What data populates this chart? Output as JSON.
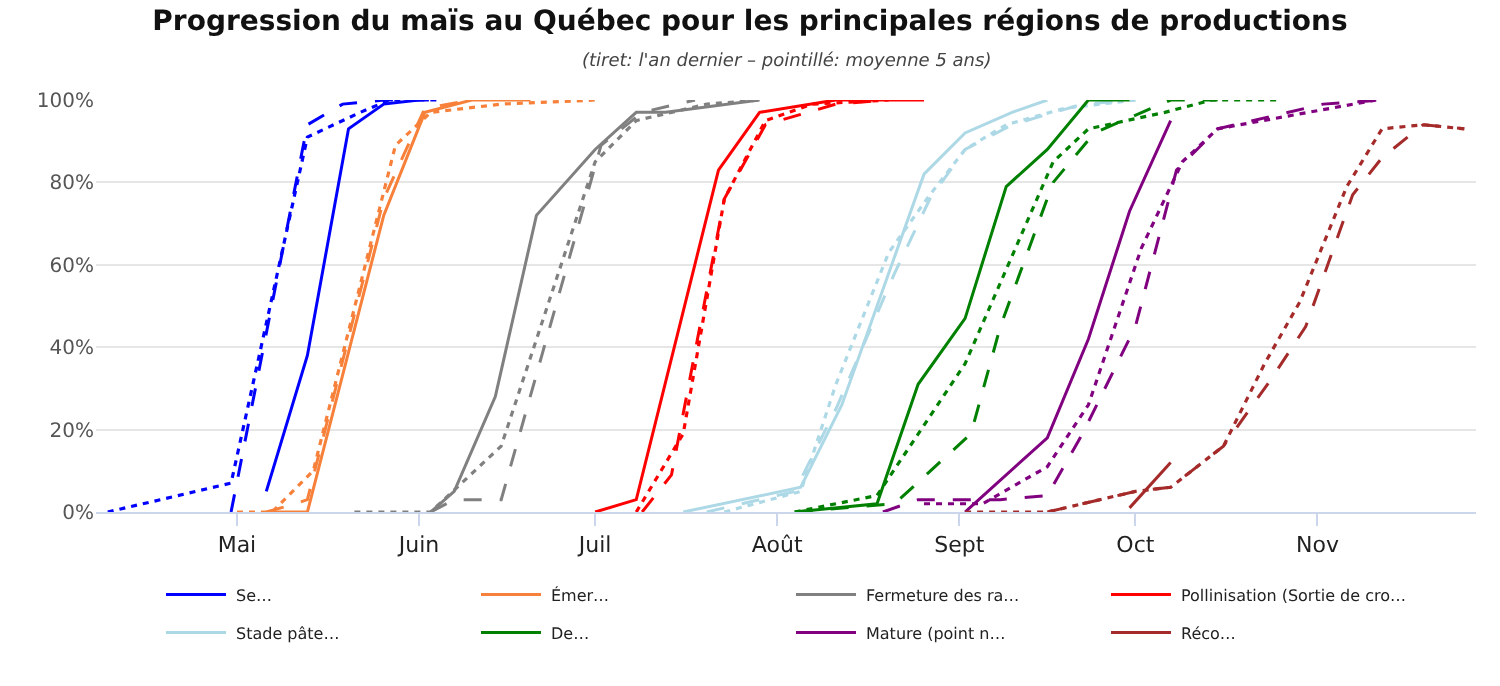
{
  "chart_data": {
    "type": "line",
    "title": "Progression du maïs au Québec pour les principales régions de productions",
    "subtitle": "(tiret: l'an dernier – pointillé: moyenne 5 ans)",
    "xlim": [
      "--04-07",
      "--11-28"
    ],
    "xticks": [
      {
        "value": "--05-01",
        "label": "Mai"
      },
      {
        "value": "--06-01",
        "label": "Juin"
      },
      {
        "value": "--07-01",
        "label": "Juil"
      },
      {
        "value": "--08-01",
        "label": "Août"
      },
      {
        "value": "--09-01",
        "label": "Sept"
      },
      {
        "value": "--10-01",
        "label": "Oct"
      },
      {
        "value": "--11-01",
        "label": "Nov"
      }
    ],
    "ylim": [
      0,
      100
    ],
    "yticks": [
      {
        "value": 0,
        "label": "0%"
      },
      {
        "value": 20,
        "label": "20%"
      },
      {
        "value": 40,
        "label": "40%"
      },
      {
        "value": 60,
        "label": "60%"
      },
      {
        "value": 80,
        "label": "80%"
      },
      {
        "value": 100,
        "label": "100%"
      }
    ],
    "grid": "y",
    "legend": "bottom",
    "marker": "none",
    "series": [
      {
        "name": "Se…",
        "color": "#0000ff",
        "line_style": "solid",
        "x": [
          "--05-06",
          "--05-13",
          "--05-20",
          "--05-26",
          "--06-01"
        ],
        "values": [
          5,
          38,
          93,
          99,
          100
        ]
      },
      {
        "color": "#0000ff",
        "line_style": "dashed",
        "x": [
          "--04-30",
          "--05-13",
          "--05-19",
          "--05-26",
          "--06-05"
        ],
        "values": [
          0,
          94,
          99,
          100,
          100
        ]
      },
      {
        "color": "#0000ff",
        "line_style": "dotted",
        "x": [
          "--04-09",
          "--04-30",
          "--05-13",
          "--05-22",
          "--05-27",
          "--06-05"
        ],
        "values": [
          0,
          7,
          91,
          97,
          100,
          100
        ]
      },
      {
        "name": "Émer…",
        "color": "#f7813a",
        "line_style": "solid",
        "x": [
          "--05-07",
          "--05-13",
          "--05-26",
          "--06-02",
          "--06-10",
          "--06-20"
        ],
        "values": [
          0,
          0,
          72,
          97,
          100,
          100
        ]
      },
      {
        "color": "#f7813a",
        "line_style": "dashed",
        "x": [
          "--05-06",
          "--05-11",
          "--05-13",
          "--05-26",
          "--06-02",
          "--06-10"
        ],
        "values": [
          0,
          2,
          3,
          76,
          98,
          100
        ]
      },
      {
        "color": "#f7813a",
        "line_style": "dotted",
        "x": [
          "--05-01",
          "--05-07",
          "--05-14",
          "--05-28",
          "--06-03",
          "--06-15",
          "--07-01"
        ],
        "values": [
          0,
          0,
          10,
          89,
          97,
          99,
          100
        ]
      },
      {
        "name": "Fermeture des ra…",
        "color": "#808080",
        "line_style": "solid",
        "x": [
          "--06-03",
          "--06-07",
          "--06-14",
          "--06-21",
          "--07-01",
          "--07-08",
          "--07-13",
          "--07-29"
        ],
        "values": [
          0,
          5,
          28,
          72,
          88,
          97,
          97,
          100
        ]
      },
      {
        "color": "#808080",
        "line_style": "dashed",
        "x": [
          "--06-03",
          "--06-07",
          "--06-15",
          "--07-02",
          "--07-09",
          "--07-18"
        ],
        "values": [
          0,
          3,
          3,
          89,
          97,
          100
        ]
      },
      {
        "color": "#808080",
        "line_style": "dotted",
        "x": [
          "--05-21",
          "--06-03",
          "--06-15",
          "--07-01",
          "--07-08",
          "--07-20",
          "--07-29"
        ],
        "values": [
          0,
          0,
          16,
          85,
          95,
          99,
          100
        ]
      },
      {
        "name": "Pollinisation (Sortie de cro…",
        "color": "#ff0000",
        "line_style": "solid",
        "x": [
          "--07-01",
          "--07-08",
          "--07-22",
          "--07-29",
          "--08-11",
          "--08-26"
        ],
        "values": [
          0,
          3,
          83,
          97,
          100,
          100
        ]
      },
      {
        "color": "#ff0000",
        "line_style": "dashed",
        "x": [
          "--07-09",
          "--07-14",
          "--07-23",
          "--07-30",
          "--08-11",
          "--08-20"
        ],
        "values": [
          0,
          9,
          76,
          94,
          99,
          100
        ]
      },
      {
        "color": "#ff0000",
        "line_style": "dotted",
        "x": [
          "--07-08",
          "--07-16",
          "--07-23",
          "--07-30",
          "--08-07",
          "--08-20"
        ],
        "values": [
          0,
          19,
          76,
          95,
          99,
          100
        ]
      },
      {
        "name": "Stade pâte…",
        "color": "#add8e6",
        "line_style": "solid",
        "x": [
          "--07-16",
          "--08-05",
          "--08-12",
          "--08-26",
          "--09-02",
          "--09-10",
          "--09-16"
        ],
        "values": [
          0,
          6,
          26,
          82,
          92,
          97,
          100
        ]
      },
      {
        "color": "#add8e6",
        "line_style": "dashed",
        "x": [
          "--07-20",
          "--08-04",
          "--08-11",
          "--08-21",
          "--08-27",
          "--09-02",
          "--09-10",
          "--09-22",
          "--10-01"
        ],
        "values": [
          0,
          5,
          25,
          58,
          76,
          88,
          94,
          99,
          100
        ]
      },
      {
        "color": "#add8e6",
        "line_style": "dotted",
        "x": [
          "--07-23",
          "--08-05",
          "--08-11",
          "--08-20",
          "--08-27",
          "--09-02",
          "--09-09",
          "--09-19",
          "--10-01"
        ],
        "values": [
          0,
          5,
          31,
          63,
          77,
          88,
          94,
          98,
          100
        ]
      },
      {
        "name": "De…",
        "color": "#008000",
        "line_style": "solid",
        "x": [
          "--08-04",
          "--08-18",
          "--08-25",
          "--09-02",
          "--09-09",
          "--09-16",
          "--09-23",
          "--09-30"
        ],
        "values": [
          0,
          2,
          31,
          47,
          79,
          88,
          100,
          100
        ]
      },
      {
        "color": "#008000",
        "line_style": "dashed",
        "x": [
          "--08-04",
          "--08-21",
          "--09-03",
          "--09-08",
          "--09-17",
          "--09-24",
          "--10-07",
          "--10-15"
        ],
        "values": [
          0,
          2,
          19,
          45,
          80,
          92,
          100,
          100
        ]
      },
      {
        "color": "#008000",
        "line_style": "dotted",
        "x": [
          "--08-04",
          "--08-18",
          "--09-02",
          "--09-17",
          "--09-23",
          "--10-06",
          "--10-14",
          "--10-25"
        ],
        "values": [
          0,
          4,
          36,
          85,
          93,
          97,
          100,
          100
        ]
      },
      {
        "name": "Mature (point n…",
        "color": "#800080",
        "line_style": "solid",
        "x": [
          "--09-02",
          "--09-16",
          "--09-23",
          "--09-30",
          "--10-07"
        ],
        "values": [
          0,
          18,
          42,
          73,
          95
        ]
      },
      {
        "color": "#800080",
        "line_style": "dashed",
        "x": [
          "--08-19",
          "--08-25",
          "--09-08",
          "--09-16",
          "--09-22",
          "--10-01",
          "--10-08",
          "--10-15",
          "--11-02",
          "--11-12"
        ],
        "values": [
          0,
          3,
          3,
          4,
          19,
          45,
          83,
          93,
          99,
          100
        ]
      },
      {
        "color": "#800080",
        "line_style": "dotted",
        "x": [
          "--08-26",
          "--09-05",
          "--09-16",
          "--09-23",
          "--10-02",
          "--10-09",
          "--10-15",
          "--11-11"
        ],
        "values": [
          2,
          2,
          11,
          26,
          64,
          85,
          93,
          100
        ]
      },
      {
        "name": "Réco…",
        "color": "#a52a2a",
        "line_style": "solid",
        "x": [
          "--09-30",
          "--10-07"
        ],
        "values": [
          1,
          12
        ]
      },
      {
        "color": "#a52a2a",
        "line_style": "dashed",
        "x": [
          "--09-16",
          "--10-01",
          "--10-07",
          "--10-16",
          "--10-24",
          "--10-30",
          "--11-07",
          "--11-12",
          "--11-19",
          "--11-26"
        ],
        "values": [
          0,
          5,
          6,
          16,
          32,
          45,
          77,
          86,
          94,
          93
        ]
      },
      {
        "color": "#a52a2a",
        "line_style": "dotted",
        "x": [
          "--09-02",
          "--09-16",
          "--10-01",
          "--10-07",
          "--10-16",
          "--10-23",
          "--10-29",
          "--11-06",
          "--11-12",
          "--11-19",
          "--11-26"
        ],
        "values": [
          0,
          0,
          5,
          6,
          16,
          36,
          51,
          79,
          93,
          94,
          93
        ]
      }
    ]
  }
}
